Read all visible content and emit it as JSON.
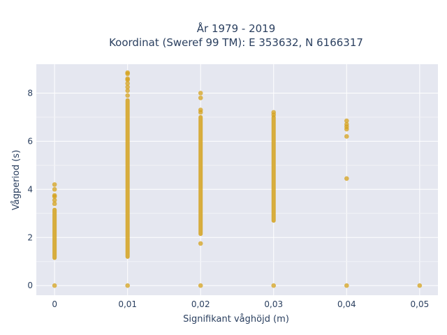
{
  "chart_data": {
    "type": "scatter",
    "title_lines": [
      "År 1979 - 2019",
      "Koordinat (Sweref 99 TM): E 353632, N 6166317"
    ],
    "xlabel": "Signifikant våghöjd (m)",
    "ylabel": "Vågperiod (s)",
    "xlim": [
      -0.0025,
      0.0525
    ],
    "ylim": [
      -0.4,
      9.2
    ],
    "x_ticks": [
      0,
      0.01,
      0.02,
      0.03,
      0.04,
      0.05
    ],
    "x_tick_labels": [
      "0",
      "0,01",
      "0,02",
      "0,03",
      "0,04",
      "0,05"
    ],
    "y_ticks": [
      0,
      2,
      4,
      6,
      8
    ],
    "y_tick_labels": [
      "0",
      "2",
      "4",
      "6",
      "8"
    ],
    "grid": true,
    "marker_color": "#d4a11c",
    "plot_bg": "#e5e7f0",
    "columns": [
      {
        "x": 0.0,
        "ranges": [
          [
            1.15,
            3.15
          ]
        ],
        "points": [
          0.0,
          3.4,
          3.55,
          3.7,
          3.75,
          4.0,
          4.2
        ]
      },
      {
        "x": 0.01,
        "ranges": [
          [
            1.2,
            7.7
          ]
        ],
        "points": [
          0.0,
          7.9,
          8.1,
          8.25,
          8.4,
          8.55,
          8.6,
          8.8,
          8.85
        ]
      },
      {
        "x": 0.02,
        "ranges": [
          [
            2.15,
            7.0
          ]
        ],
        "points": [
          0.0,
          1.75,
          7.2,
          7.3,
          7.8,
          8.0
        ]
      },
      {
        "x": 0.03,
        "ranges": [
          [
            2.7,
            7.0
          ]
        ],
        "points": [
          0.0,
          7.1,
          7.2
        ]
      },
      {
        "x": 0.04,
        "ranges": [],
        "points": [
          0.0,
          4.45,
          6.2,
          6.5,
          6.6,
          6.7,
          6.85
        ]
      },
      {
        "x": 0.05,
        "ranges": [],
        "points": [
          0.0
        ]
      }
    ]
  }
}
